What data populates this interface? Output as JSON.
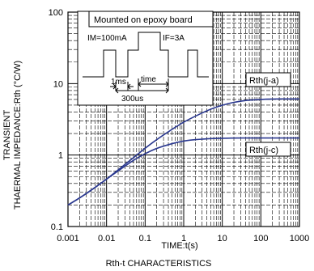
{
  "chart_data": {
    "type": "line",
    "title": "",
    "caption": "Rth-t CHARACTERISTICS",
    "xlabel": "TIME:t(s)",
    "ylabel_line1": "TRANSIENT",
    "ylabel_line2": "THAERMAL IMPEDANCE:Rth (°C/W)",
    "x_scale": "log",
    "y_scale": "log",
    "xlim": [
      0.001,
      1000
    ],
    "ylim": [
      0.1,
      100
    ],
    "x_tick_labels": [
      "0.001",
      "0.01",
      "0.1",
      "1",
      "10",
      "100",
      "1000"
    ],
    "y_tick_labels": [
      "100",
      "10",
      "1",
      "0.1"
    ],
    "grid": true,
    "series": [
      {
        "name": "Rth(j-a)",
        "x": [
          0.001,
          0.002,
          0.005,
          0.01,
          0.02,
          0.05,
          0.1,
          0.2,
          0.5,
          1,
          2,
          5,
          10,
          20,
          50,
          100,
          200,
          500,
          1000
        ],
        "y": [
          0.2,
          0.25,
          0.35,
          0.46,
          0.62,
          0.92,
          1.25,
          1.65,
          2.3,
          2.9,
          3.5,
          4.4,
          5.0,
          5.5,
          5.9,
          6.0,
          6.1,
          6.1,
          6.1
        ]
      },
      {
        "name": "Rth(j-c)",
        "x": [
          0.001,
          0.002,
          0.005,
          0.01,
          0.02,
          0.05,
          0.1,
          0.2,
          0.5,
          1,
          2,
          5,
          10,
          20,
          50,
          100,
          200,
          500,
          1000
        ],
        "y": [
          0.2,
          0.25,
          0.35,
          0.46,
          0.6,
          0.85,
          1.05,
          1.25,
          1.45,
          1.58,
          1.65,
          1.7,
          1.72,
          1.73,
          1.73,
          1.73,
          1.73,
          1.73,
          1.73
        ]
      }
    ],
    "inset": {
      "title": "Mounted on epoxy board",
      "label_im": "IM=100mA",
      "label_if": "IF=3A",
      "label_1ms": "1ms",
      "label_time": "time",
      "label_300us": "300us"
    },
    "colors": {
      "curve": "#2b3990",
      "grid": "#000000",
      "axis": "#000000"
    }
  }
}
